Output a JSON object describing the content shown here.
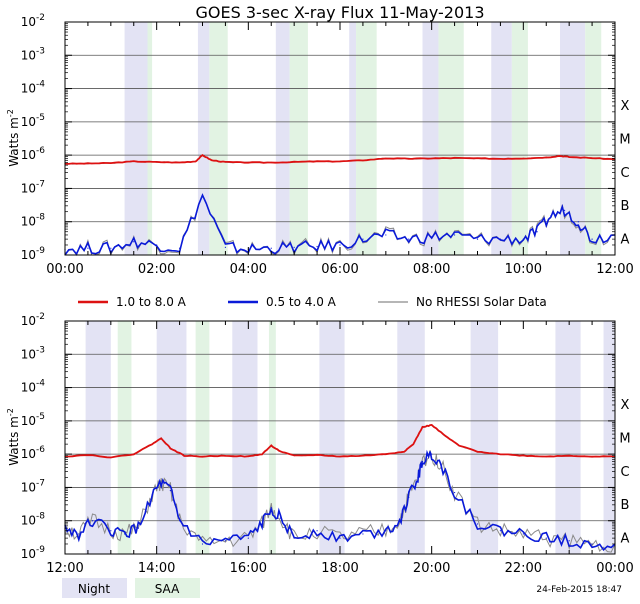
{
  "chart_data": [
    {
      "type": "line",
      "title": "GOES 3-sec X-ray Flux   11-May-2013",
      "ylabel": "Watts m",
      "ylabel_sup": "-2",
      "yscale": "log",
      "ylim": [
        1e-09,
        0.01
      ],
      "y_ticks": [
        {
          "base": "10",
          "exp": "-2"
        },
        {
          "base": "10",
          "exp": "-3"
        },
        {
          "base": "10",
          "exp": "-4"
        },
        {
          "base": "10",
          "exp": "-5"
        },
        {
          "base": "10",
          "exp": "-6"
        },
        {
          "base": "10",
          "exp": "-7"
        },
        {
          "base": "10",
          "exp": "-8"
        },
        {
          "base": "10",
          "exp": "-9"
        }
      ],
      "flare_classes": [
        "X",
        "M",
        "C",
        "B",
        "A"
      ],
      "xlim_hours": [
        0,
        12
      ],
      "x_tick_labels": [
        "00:00",
        "02:00",
        "04:00",
        "06:00",
        "08:00",
        "10:00",
        "12:00"
      ],
      "night_intervals_hours": [
        [
          1.3,
          1.8
        ],
        [
          2.9,
          3.15
        ],
        [
          4.6,
          4.9
        ],
        [
          6.2,
          6.35
        ],
        [
          7.8,
          8.15
        ],
        [
          9.3,
          9.75
        ],
        [
          10.8,
          11.35
        ]
      ],
      "saa_intervals_hours": [
        [
          1.8,
          1.9
        ],
        [
          3.15,
          3.55
        ],
        [
          4.9,
          5.3
        ],
        [
          6.35,
          6.8
        ],
        [
          8.15,
          8.7
        ],
        [
          9.75,
          10.1
        ],
        [
          11.35,
          11.7
        ]
      ],
      "series": [
        {
          "name": "1.0 to 8.0 A",
          "color": "#dd1111",
          "x": [
            0,
            0.5,
            1.0,
            1.5,
            2.0,
            2.5,
            2.85,
            3.0,
            3.2,
            3.5,
            4.0,
            4.5,
            5.0,
            5.5,
            6.0,
            6.5,
            7.0,
            7.5,
            8.0,
            8.5,
            9.0,
            9.5,
            10.0,
            10.5,
            10.8,
            11.0,
            11.5,
            12.0
          ],
          "y": [
            5.5e-07,
            5.6e-07,
            5.8e-07,
            6.5e-07,
            6.2e-07,
            6e-07,
            6.5e-07,
            1e-06,
            7e-07,
            6.2e-07,
            6e-07,
            6e-07,
            6.2e-07,
            6.5e-07,
            6.5e-07,
            7e-07,
            8e-07,
            7.8e-07,
            8e-07,
            8.2e-07,
            8e-07,
            7.8e-07,
            8e-07,
            8.5e-07,
            9.5e-07,
            8.8e-07,
            8.2e-07,
            7.5e-07
          ]
        },
        {
          "name": "0.5 to 4.0 A",
          "color": "#0a1ad8",
          "x": [
            0,
            0.5,
            1.0,
            1.5,
            2.0,
            2.5,
            3.0,
            3.5,
            4.0,
            4.5,
            5.0,
            5.5,
            6.0,
            6.5,
            7.0,
            7.5,
            8.0,
            8.5,
            9.0,
            9.5,
            10.0,
            10.3,
            10.6,
            10.9,
            11.2,
            11.5,
            12.0
          ],
          "y": [
            1.5e-09,
            1.6e-09,
            1.6e-09,
            2.5e-09,
            2e-09,
            1.6e-09,
            6e-08,
            1.7e-09,
            1.5e-09,
            1.6e-09,
            1.7e-09,
            1.8e-09,
            2e-09,
            3e-09,
            4e-09,
            3e-09,
            3.5e-09,
            4e-09,
            3e-09,
            3e-09,
            3e-09,
            5e-09,
            1.5e-08,
            2.2e-08,
            1e-08,
            3e-09,
            4e-09
          ]
        }
      ]
    },
    {
      "type": "line",
      "ylabel": "Watts m",
      "ylabel_sup": "-2",
      "yscale": "log",
      "ylim": [
        1e-09,
        0.01
      ],
      "y_ticks": [
        {
          "base": "10",
          "exp": "-2"
        },
        {
          "base": "10",
          "exp": "-3"
        },
        {
          "base": "10",
          "exp": "-4"
        },
        {
          "base": "10",
          "exp": "-5"
        },
        {
          "base": "10",
          "exp": "-6"
        },
        {
          "base": "10",
          "exp": "-7"
        },
        {
          "base": "10",
          "exp": "-8"
        },
        {
          "base": "10",
          "exp": "-9"
        }
      ],
      "flare_classes": [
        "X",
        "M",
        "C",
        "B",
        "A"
      ],
      "xlim_hours": [
        12,
        24
      ],
      "x_tick_labels": [
        "12:00",
        "14:00",
        "16:00",
        "18:00",
        "20:00",
        "22:00",
        "00:00"
      ],
      "night_intervals_hours": [
        [
          12.45,
          13.0
        ],
        [
          14.0,
          14.65
        ],
        [
          15.65,
          16.2
        ],
        [
          17.55,
          18.1
        ],
        [
          19.25,
          19.85
        ],
        [
          20.85,
          21.45
        ],
        [
          22.7,
          23.25
        ],
        [
          23.75,
          24.0
        ]
      ],
      "saa_intervals_hours": [
        [
          13.15,
          13.45
        ],
        [
          14.85,
          15.15
        ],
        [
          16.45,
          16.6
        ]
      ],
      "series": [
        {
          "name": "1.0 to 8.0 A",
          "color": "#dd1111",
          "x": [
            12.0,
            12.5,
            13.0,
            13.5,
            13.9,
            14.1,
            14.3,
            14.6,
            15.0,
            15.5,
            16.0,
            16.3,
            16.5,
            16.7,
            17.0,
            17.5,
            18.0,
            18.5,
            19.0,
            19.4,
            19.6,
            19.8,
            20.0,
            20.3,
            20.6,
            21.0,
            21.5,
            22.0,
            22.5,
            23.0,
            23.5,
            24.0
          ],
          "y": [
            8.5e-07,
            9.5e-07,
            8e-07,
            1e-06,
            2e-06,
            3e-06,
            1.5e-06,
            9e-07,
            8.5e-07,
            9e-07,
            8.5e-07,
            1e-06,
            1.8e-06,
            1.2e-06,
            9e-07,
            9.5e-07,
            8.5e-07,
            9e-07,
            1e-06,
            1.2e-06,
            2e-06,
            6.5e-06,
            7.5e-06,
            3.5e-06,
            1.8e-06,
            1.2e-06,
            1e-06,
            9e-07,
            8.5e-07,
            9e-07,
            8.5e-07,
            8.5e-07
          ]
        },
        {
          "name": "0.5 to 4.0 A",
          "color": "#0a1ad8",
          "x": [
            12.0,
            12.3,
            12.6,
            13.0,
            13.3,
            13.6,
            13.9,
            14.1,
            14.3,
            14.5,
            15.0,
            15.5,
            16.0,
            16.3,
            16.5,
            16.7,
            17.0,
            17.5,
            18.0,
            18.5,
            19.0,
            19.3,
            19.5,
            19.7,
            19.8,
            20.0,
            20.2,
            20.5,
            21.0,
            21.5,
            22.0,
            22.5,
            23.0,
            23.5,
            24.0
          ],
          "y": [
            6e-09,
            4e-09,
            1e-08,
            5e-09,
            4e-09,
            6e-09,
            6e-08,
            1.3e-07,
            8e-08,
            1e-08,
            2e-09,
            2.5e-09,
            3e-09,
            8e-09,
            2.5e-08,
            1.2e-08,
            3e-09,
            5e-09,
            3e-09,
            4e-09,
            5e-09,
            1e-08,
            5e-08,
            2e-07,
            6e-07,
            1e-06,
            5e-07,
            7e-08,
            8e-09,
            5e-09,
            4e-09,
            3e-09,
            2.5e-09,
            2e-09,
            2e-09
          ]
        }
      ]
    }
  ],
  "legend": {
    "long_label": "1.0 to 8.0 A",
    "long_color": "#dd1111",
    "short_label": "0.5 to 4.0 A",
    "short_color": "#0a1ad8",
    "norhessi_label": "No RHESSI Solar Data",
    "norhessi_color": "#8a8a8a",
    "night_label": "Night",
    "night_color": "#e3e3f4",
    "saa_label": "SAA",
    "saa_color": "#e2f3e3"
  },
  "timestamp": "24-Feb-2015 18:47"
}
